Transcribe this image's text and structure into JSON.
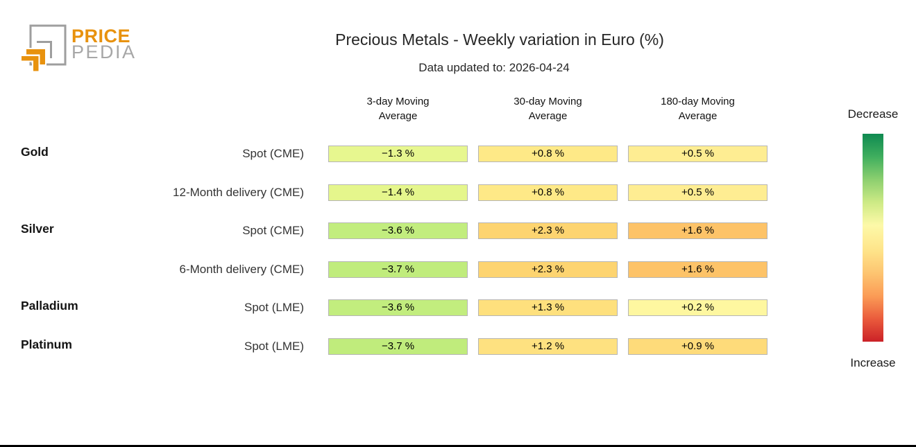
{
  "logo": {
    "brand_top": "PRICE",
    "brand_bottom": "PEDIA",
    "accent_color": "#e8920e",
    "gray_color": "#9e9e9e"
  },
  "header": {
    "title": "Precious Metals - Weekly variation in Euro (%)",
    "subtitle": "Data updated to: 2026-04-24"
  },
  "table": {
    "column_headers": [
      "3-day Moving\nAverage",
      "30-day Moving\nAverage",
      "180-day Moving\nAverage"
    ],
    "rows": [
      {
        "metal": "Gold",
        "contract": "Spot (CME)",
        "cells": [
          {
            "text": "−1.3 %",
            "bg": "#e7f78f"
          },
          {
            "text": "+0.8 %",
            "bg": "#fee987"
          },
          {
            "text": "+0.5 %",
            "bg": "#feed92"
          }
        ]
      },
      {
        "metal": "",
        "contract": "12-Month delivery (CME)",
        "cells": [
          {
            "text": "−1.4 %",
            "bg": "#e5f68c"
          },
          {
            "text": "+0.8 %",
            "bg": "#fee987"
          },
          {
            "text": "+0.5 %",
            "bg": "#feed92"
          }
        ]
      },
      {
        "metal": "Silver",
        "contract": "Spot (CME)",
        "cells": [
          {
            "text": "−3.6 %",
            "bg": "#c2ed7e"
          },
          {
            "text": "+2.3 %",
            "bg": "#fdd470"
          },
          {
            "text": "+1.6 %",
            "bg": "#fdc368"
          }
        ]
      },
      {
        "metal": "",
        "contract": "6-Month delivery (CME)",
        "cells": [
          {
            "text": "−3.7 %",
            "bg": "#c0ec7c"
          },
          {
            "text": "+2.3 %",
            "bg": "#fdd470"
          },
          {
            "text": "+1.6 %",
            "bg": "#fdc368"
          }
        ]
      },
      {
        "metal": "Palladium",
        "contract": "Spot (LME)",
        "cells": [
          {
            "text": "−3.6 %",
            "bg": "#c2ed7e"
          },
          {
            "text": "+1.3 %",
            "bg": "#fee07d"
          },
          {
            "text": "+0.2 %",
            "bg": "#fef7a0"
          }
        ]
      },
      {
        "metal": "Platinum",
        "contract": "Spot (LME)",
        "cells": [
          {
            "text": "−3.7 %",
            "bg": "#c0ec7c"
          },
          {
            "text": "+1.2 %",
            "bg": "#fee180"
          },
          {
            "text": "+0.9 %",
            "bg": "#fedb7a"
          }
        ]
      }
    ]
  },
  "legend": {
    "top_label": "Decrease",
    "bottom_label": "Increase",
    "gradient_stops": [
      "#0f8a51",
      "#3fae5e",
      "#8ccf6f",
      "#cdea85",
      "#fdf9a8",
      "#fee48a",
      "#fdc571",
      "#fb9c56",
      "#ea5b3c",
      "#cb2127"
    ]
  },
  "chart_data": {
    "type": "heatmap",
    "title": "Precious Metals - Weekly variation in Euro (%)",
    "subtitle": "Data updated to: 2026-04-24",
    "columns": [
      "3-day Moving Average",
      "30-day Moving Average",
      "180-day Moving Average"
    ],
    "rows": [
      {
        "metal": "Gold",
        "contract": "Spot (CME)",
        "values": [
          -1.3,
          0.8,
          0.5
        ]
      },
      {
        "metal": "Gold",
        "contract": "12-Month delivery (CME)",
        "values": [
          -1.4,
          0.8,
          0.5
        ]
      },
      {
        "metal": "Silver",
        "contract": "Spot (CME)",
        "values": [
          -3.6,
          2.3,
          1.6
        ]
      },
      {
        "metal": "Silver",
        "contract": "6-Month delivery (CME)",
        "values": [
          -3.7,
          2.3,
          1.6
        ]
      },
      {
        "metal": "Palladium",
        "contract": "Spot (LME)",
        "values": [
          -3.6,
          1.3,
          0.2
        ]
      },
      {
        "metal": "Platinum",
        "contract": "Spot (LME)",
        "values": [
          -3.7,
          1.2,
          0.9
        ]
      }
    ],
    "value_unit": "%",
    "colorscale": {
      "low_label": "Decrease",
      "low_color": "green",
      "mid_color": "yellow",
      "high_label": "Increase",
      "high_color": "red"
    },
    "legend_position": "right"
  }
}
